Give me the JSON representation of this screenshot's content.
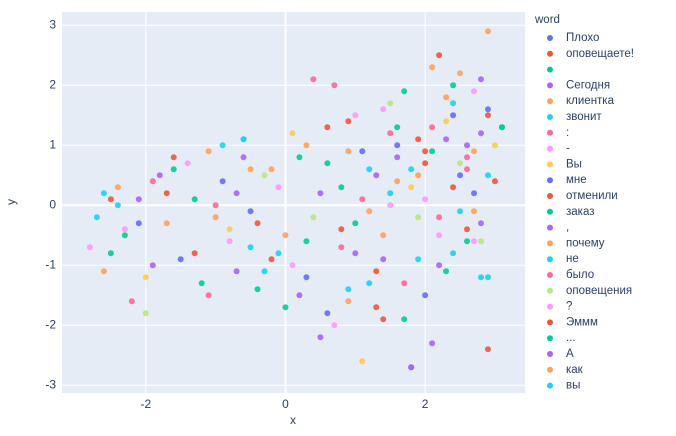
{
  "chart_data": {
    "type": "scatter",
    "x_label": "x",
    "y_label": "y",
    "legend_title": "word",
    "xlim": [
      -3.2,
      3.43
    ],
    "ylim": [
      -3.13,
      3.22
    ],
    "xticks": [
      -2,
      0,
      2
    ],
    "yticks": [
      -3,
      -2,
      -1,
      0,
      1,
      2,
      3
    ],
    "grid": true,
    "series": [
      {
        "name": "Плохо",
        "color": "#636efa",
        "x": [
          -2.1,
          -0.9,
          0.3,
          1.1,
          1.8,
          2.4,
          2.7
        ],
        "y": [
          -0.3,
          0.4,
          -1.2,
          0.9,
          -2.7,
          1.5,
          0.2
        ]
      },
      {
        "name": "оповещаете!",
        "color": "#EF553B",
        "x": [
          -2.5,
          -1.3,
          0.6,
          1.4,
          2.0,
          2.2,
          2.9
        ],
        "y": [
          0.1,
          -0.8,
          1.3,
          -1.9,
          0.7,
          2.5,
          -2.4
        ]
      },
      {
        "name": " ",
        "color": "#00cc96",
        "x": [
          -1.6,
          -0.4,
          0.2,
          1.0,
          1.7,
          2.6,
          3.1
        ],
        "y": [
          0.6,
          -1.4,
          0.8,
          -0.3,
          1.9,
          -0.6,
          1.3
        ]
      },
      {
        "name": "Сегодня",
        "color": "#ab63fa",
        "x": [
          -1.9,
          -0.7,
          0.5,
          1.3,
          2.1,
          2.3,
          2.8
        ],
        "y": [
          -1.0,
          0.2,
          -2.2,
          0.5,
          -2.3,
          1.1,
          2.1
        ]
      },
      {
        "name": "клиентка",
        "color": "#FFA15A",
        "x": [
          -2.4,
          -1.1,
          0.0,
          0.9,
          1.6,
          2.5,
          2.9
        ],
        "y": [
          0.3,
          0.9,
          -0.5,
          -1.6,
          0.4,
          2.2,
          2.9
        ]
      },
      {
        "name": "звонит",
        "color": "#19d3f3",
        "x": [
          -2.7,
          -0.6,
          -0.3,
          1.2,
          1.9,
          2.4,
          2.8
        ],
        "y": [
          -0.2,
          1.1,
          -1.1,
          0.6,
          -0.9,
          1.7,
          -1.2
        ]
      },
      {
        "name": ":",
        "color": "#FF6692",
        "x": [
          -2.2,
          -1.0,
          0.4,
          0.8,
          1.5,
          2.2,
          2.6
        ],
        "y": [
          -1.6,
          0.0,
          2.1,
          -0.7,
          1.2,
          -0.2,
          0.8
        ]
      },
      {
        "name": "-",
        "color": "#FF97FF",
        "x": [
          -2.8,
          -1.4,
          -0.1,
          0.7,
          1.4,
          2.0,
          2.7
        ],
        "y": [
          -0.7,
          0.7,
          0.3,
          -2.0,
          1.6,
          0.1,
          -0.6
        ]
      },
      {
        "name": "Вы",
        "color": "#FECB52",
        "x": [
          -2.0,
          -0.8,
          0.1,
          1.1,
          1.8,
          2.3,
          3.0
        ],
        "y": [
          -1.2,
          -0.4,
          1.2,
          -2.6,
          0.3,
          1.4,
          1.0
        ]
      },
      {
        "name": "мне",
        "color": "#636efa",
        "x": [
          -1.5,
          -0.5,
          0.6,
          1.6,
          2.0,
          2.5,
          2.9
        ],
        "y": [
          -0.9,
          -0.1,
          -1.8,
          1.0,
          -1.5,
          0.5,
          1.6
        ]
      },
      {
        "name": "отменили",
        "color": "#EF553B",
        "x": [
          -1.7,
          -0.2,
          0.9,
          1.3,
          1.9,
          2.6,
          3.0
        ],
        "y": [
          0.2,
          -0.9,
          1.4,
          -1.1,
          1.1,
          -0.4,
          0.4
        ]
      },
      {
        "name": "заказ",
        "color": "#00cc96",
        "x": [
          -2.3,
          -1.2,
          0.3,
          0.8,
          1.7,
          2.1,
          2.4
        ],
        "y": [
          -0.5,
          -1.3,
          -0.6,
          0.3,
          -1.9,
          0.9,
          2.0
        ]
      },
      {
        "name": ",",
        "color": "#ab63fa",
        "x": [
          -1.8,
          -0.6,
          0.2,
          1.0,
          1.6,
          2.2,
          2.8
        ],
        "y": [
          0.5,
          0.8,
          -1.5,
          -0.8,
          0.8,
          -1.0,
          1.2
        ]
      },
      {
        "name": "почему",
        "color": "#FFA15A",
        "x": [
          -2.6,
          -1.0,
          -0.2,
          0.9,
          1.4,
          2.3,
          2.7
        ],
        "y": [
          -1.1,
          -0.2,
          0.6,
          0.9,
          -0.5,
          1.8,
          -0.1
        ]
      },
      {
        "name": "не",
        "color": "#19d3f3",
        "x": [
          -2.4,
          -0.9,
          -0.5,
          1.2,
          1.8,
          2.4,
          2.9
        ],
        "y": [
          0.0,
          1.0,
          -0.7,
          -1.3,
          0.6,
          -0.8,
          -1.2
        ]
      },
      {
        "name": "было",
        "color": "#FF6692",
        "x": [
          -1.9,
          -1.1,
          0.7,
          1.1,
          1.7,
          2.1,
          2.6
        ],
        "y": [
          0.4,
          -1.5,
          2.0,
          0.1,
          -1.3,
          1.3,
          0.6
        ]
      },
      {
        "name": "оповещения",
        "color": "#B6E880",
        "x": [
          -2.0,
          -0.3,
          0.4,
          1.5,
          1.9,
          2.5,
          2.8
        ],
        "y": [
          -1.8,
          0.5,
          -0.2,
          1.7,
          -0.2,
          0.7,
          -0.6
        ]
      },
      {
        "name": "?",
        "color": "#FF97FF",
        "x": [
          -2.3,
          -0.8,
          0.1,
          1.0,
          1.5,
          2.2,
          2.7
        ],
        "y": [
          -0.4,
          -0.6,
          -1.0,
          1.5,
          0.0,
          -0.5,
          1.9
        ]
      },
      {
        "name": "Эммм",
        "color": "#EF553B",
        "x": [
          -1.6,
          -0.4,
          0.8,
          1.3,
          2.0,
          2.4,
          2.9
        ],
        "y": [
          0.8,
          -0.3,
          -0.4,
          -1.7,
          0.9,
          0.3,
          1.5
        ]
      },
      {
        "name": "...",
        "color": "#00cc96",
        "x": [
          -2.5,
          -1.3,
          0.0,
          0.6,
          1.6,
          2.3,
          3.1
        ],
        "y": [
          -0.8,
          0.1,
          -1.7,
          0.7,
          1.3,
          -1.1,
          1.3
        ]
      },
      {
        "name": "А",
        "color": "#ab63fa",
        "x": [
          -2.1,
          -0.7,
          0.5,
          1.4,
          1.8,
          2.6,
          2.8
        ],
        "y": [
          0.1,
          -1.1,
          0.2,
          -0.9,
          -2.7,
          1.0,
          -0.3
        ]
      },
      {
        "name": "как",
        "color": "#FFA15A",
        "x": [
          -1.7,
          -0.5,
          0.3,
          1.2,
          1.9,
          2.1,
          2.7
        ],
        "y": [
          -0.3,
          0.6,
          1.0,
          -0.1,
          0.5,
          2.3,
          0.9
        ]
      },
      {
        "name": "вы",
        "color": "#19d3f3",
        "x": [
          -2.6,
          -0.6,
          -0.1,
          0.9,
          1.5,
          2.5,
          2.9
        ],
        "y": [
          0.2,
          1.1,
          -0.8,
          -1.4,
          0.2,
          -0.1,
          0.5
        ]
      }
    ]
  }
}
